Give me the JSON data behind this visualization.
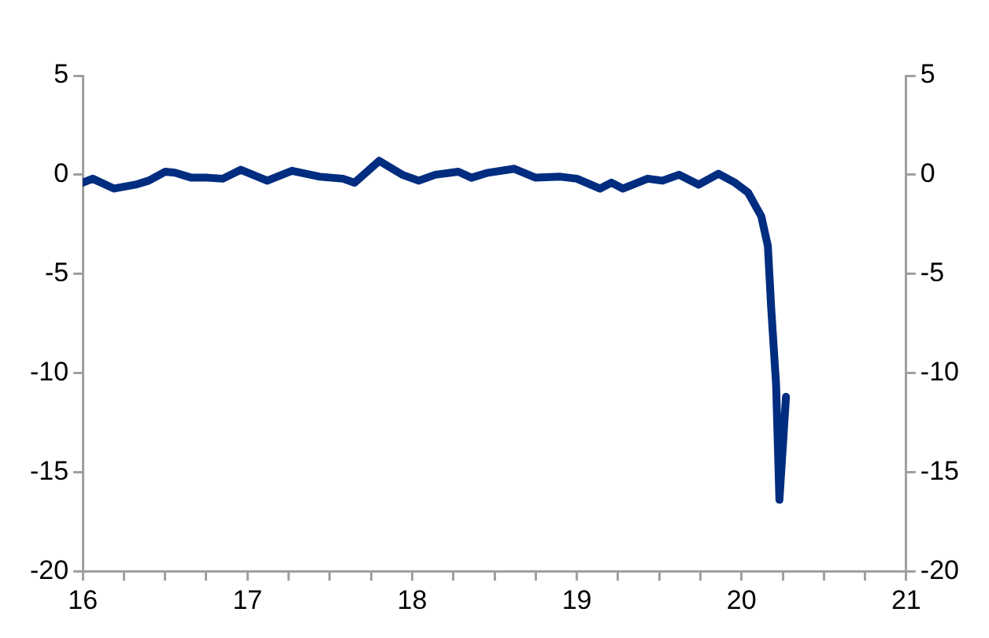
{
  "chart_data": {
    "type": "line",
    "xlim": [
      16,
      21
    ],
    "xticks": [
      16,
      {
        "value": 16.25,
        "label": null
      },
      {
        "value": 16.5,
        "label": null
      },
      {
        "value": 16.75,
        "label": null
      },
      17,
      {
        "value": 17.25,
        "label": null
      },
      {
        "value": 17.5,
        "label": null
      },
      {
        "value": 17.75,
        "label": null
      },
      18,
      {
        "value": 18.25,
        "label": null
      },
      {
        "value": 18.5,
        "label": null
      },
      {
        "value": 18.75,
        "label": null
      },
      19,
      {
        "value": 19.25,
        "label": null
      },
      {
        "value": 19.5,
        "label": null
      },
      {
        "value": 19.75,
        "label": null
      },
      20,
      {
        "value": 20.25,
        "label": null
      },
      {
        "value": 20.5,
        "label": null
      },
      {
        "value": 20.75,
        "label": null
      },
      21
    ],
    "ylim": [
      -20,
      5
    ],
    "yticks": [
      -20,
      -15,
      -10,
      -5,
      0,
      5
    ],
    "y2lim": [
      -20,
      5
    ],
    "y2ticks": [
      -20,
      -15,
      -10,
      -5,
      0,
      5
    ],
    "grid": false,
    "legend": false,
    "marker": "none",
    "line_style": "solid",
    "series": [
      {
        "color": "#002d80",
        "x": [
          16.0,
          16.06,
          16.19,
          16.32,
          16.4,
          16.5,
          16.56,
          16.66,
          16.76,
          16.85,
          16.96,
          17.12,
          17.27,
          17.44,
          17.58,
          17.65,
          17.8,
          17.94,
          18.04,
          18.14,
          18.28,
          18.36,
          18.46,
          18.62,
          18.75,
          18.9,
          19.0,
          19.14,
          19.21,
          19.28,
          19.43,
          19.52,
          19.62,
          19.74,
          19.86,
          19.96,
          20.04,
          20.12,
          20.16,
          20.18,
          20.21,
          20.23,
          20.27
        ],
        "values": [
          -0.4,
          -0.2,
          -0.7,
          -0.5,
          -0.3,
          0.15,
          0.1,
          -0.15,
          -0.15,
          -0.2,
          0.25,
          -0.3,
          0.2,
          -0.1,
          -0.2,
          -0.4,
          0.7,
          0,
          -0.3,
          0,
          0.15,
          -0.15,
          0.1,
          0.3,
          -0.15,
          -0.1,
          -0.2,
          -0.7,
          -0.4,
          -0.7,
          -0.2,
          -0.3,
          0,
          -0.5,
          0.05,
          -0.4,
          -0.9,
          -2.1,
          -3.6,
          -6.7,
          -10.6,
          -16.4,
          -11.2
        ]
      }
    ]
  }
}
